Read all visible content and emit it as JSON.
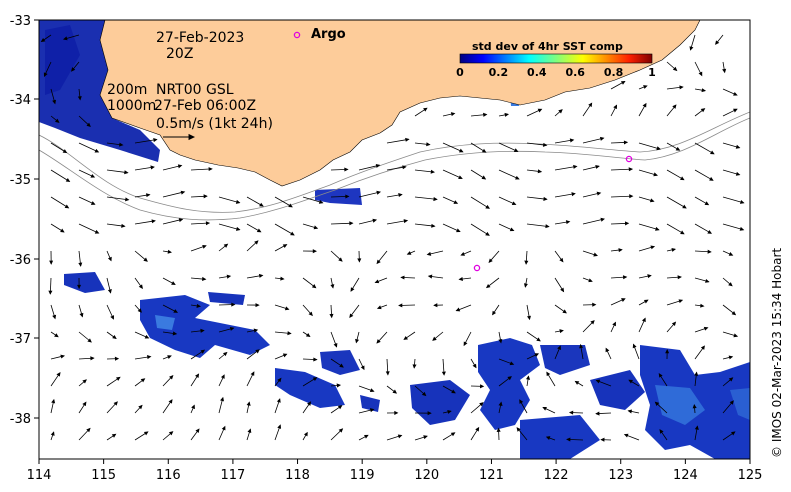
{
  "map": {
    "date": "27-Feb-2023",
    "hour": "20Z",
    "depth_200": "200m",
    "depth_1000": "1000m",
    "current_product": "NRT00 GSL",
    "current_time": "27-Feb 06:00Z",
    "scale_label": "0.5m/s (1kt 24h)",
    "argo_label": "Argo",
    "credit": "© IMOS 02-Mar-2023 15:34 Hobart",
    "lon_ticks": [
      "114",
      "115",
      "116",
      "117",
      "118",
      "119",
      "120",
      "121",
      "122",
      "123",
      "124",
      "125"
    ],
    "lat_ticks": [
      "-33",
      "-34",
      "-35",
      "-36",
      "-37",
      "-38"
    ],
    "colors": {
      "land": "#fdcc9a",
      "water": "#ffffff",
      "argo": "#e000e0"
    }
  },
  "colorbar": {
    "title": "std dev of 4hr SST comp",
    "ticks": [
      "0",
      "0.2",
      "0.4",
      "0.6",
      "0.8",
      "1"
    ],
    "palette": [
      "#00007f",
      "#0000ff",
      "#007fff",
      "#00ffff",
      "#7fff7f",
      "#ffff00",
      "#ff7f00",
      "#ff0000",
      "#7f0000"
    ]
  }
}
